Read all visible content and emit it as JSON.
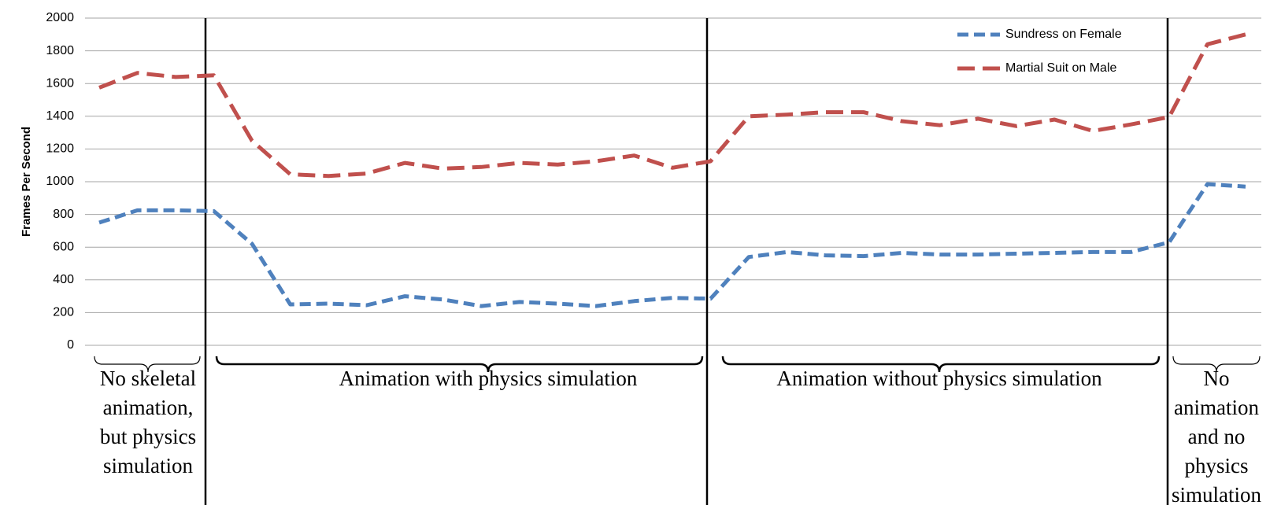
{
  "chart_data": {
    "type": "line",
    "y_label": "Frames Per Second",
    "ylim": [
      0,
      2000
    ],
    "yticks": [
      0,
      200,
      400,
      600,
      800,
      1000,
      1200,
      1400,
      1600,
      1800,
      2000
    ],
    "grid": true,
    "legend": "upper right",
    "series": [
      {
        "name": "Sundress on Female",
        "color": "#4f81bd",
        "values": [
          750,
          825,
          825,
          820,
          620,
          250,
          255,
          245,
          300,
          280,
          240,
          265,
          255,
          240,
          270,
          290,
          285,
          540,
          570,
          550,
          545,
          565,
          555,
          555,
          560,
          565,
          570,
          570,
          630,
          985,
          970
        ]
      },
      {
        "name": "Martial Suit on Male",
        "color": "#c0504d",
        "values": [
          1575,
          1665,
          1640,
          1650,
          1250,
          1045,
          1035,
          1050,
          1115,
          1080,
          1090,
          1115,
          1105,
          1125,
          1160,
          1085,
          1125,
          1400,
          1410,
          1425,
          1425,
          1370,
          1345,
          1385,
          1340,
          1380,
          1310,
          1350,
          1395,
          1840,
          1900
        ]
      }
    ],
    "annotations": [
      [
        "No skeletal",
        "animation,",
        "but physics",
        "simulation"
      ],
      [
        "Animation with physics simulation"
      ],
      [
        "Animation without physics simulation"
      ],
      [
        "No",
        "animation",
        "and no",
        "physics",
        "simulation"
      ]
    ]
  }
}
